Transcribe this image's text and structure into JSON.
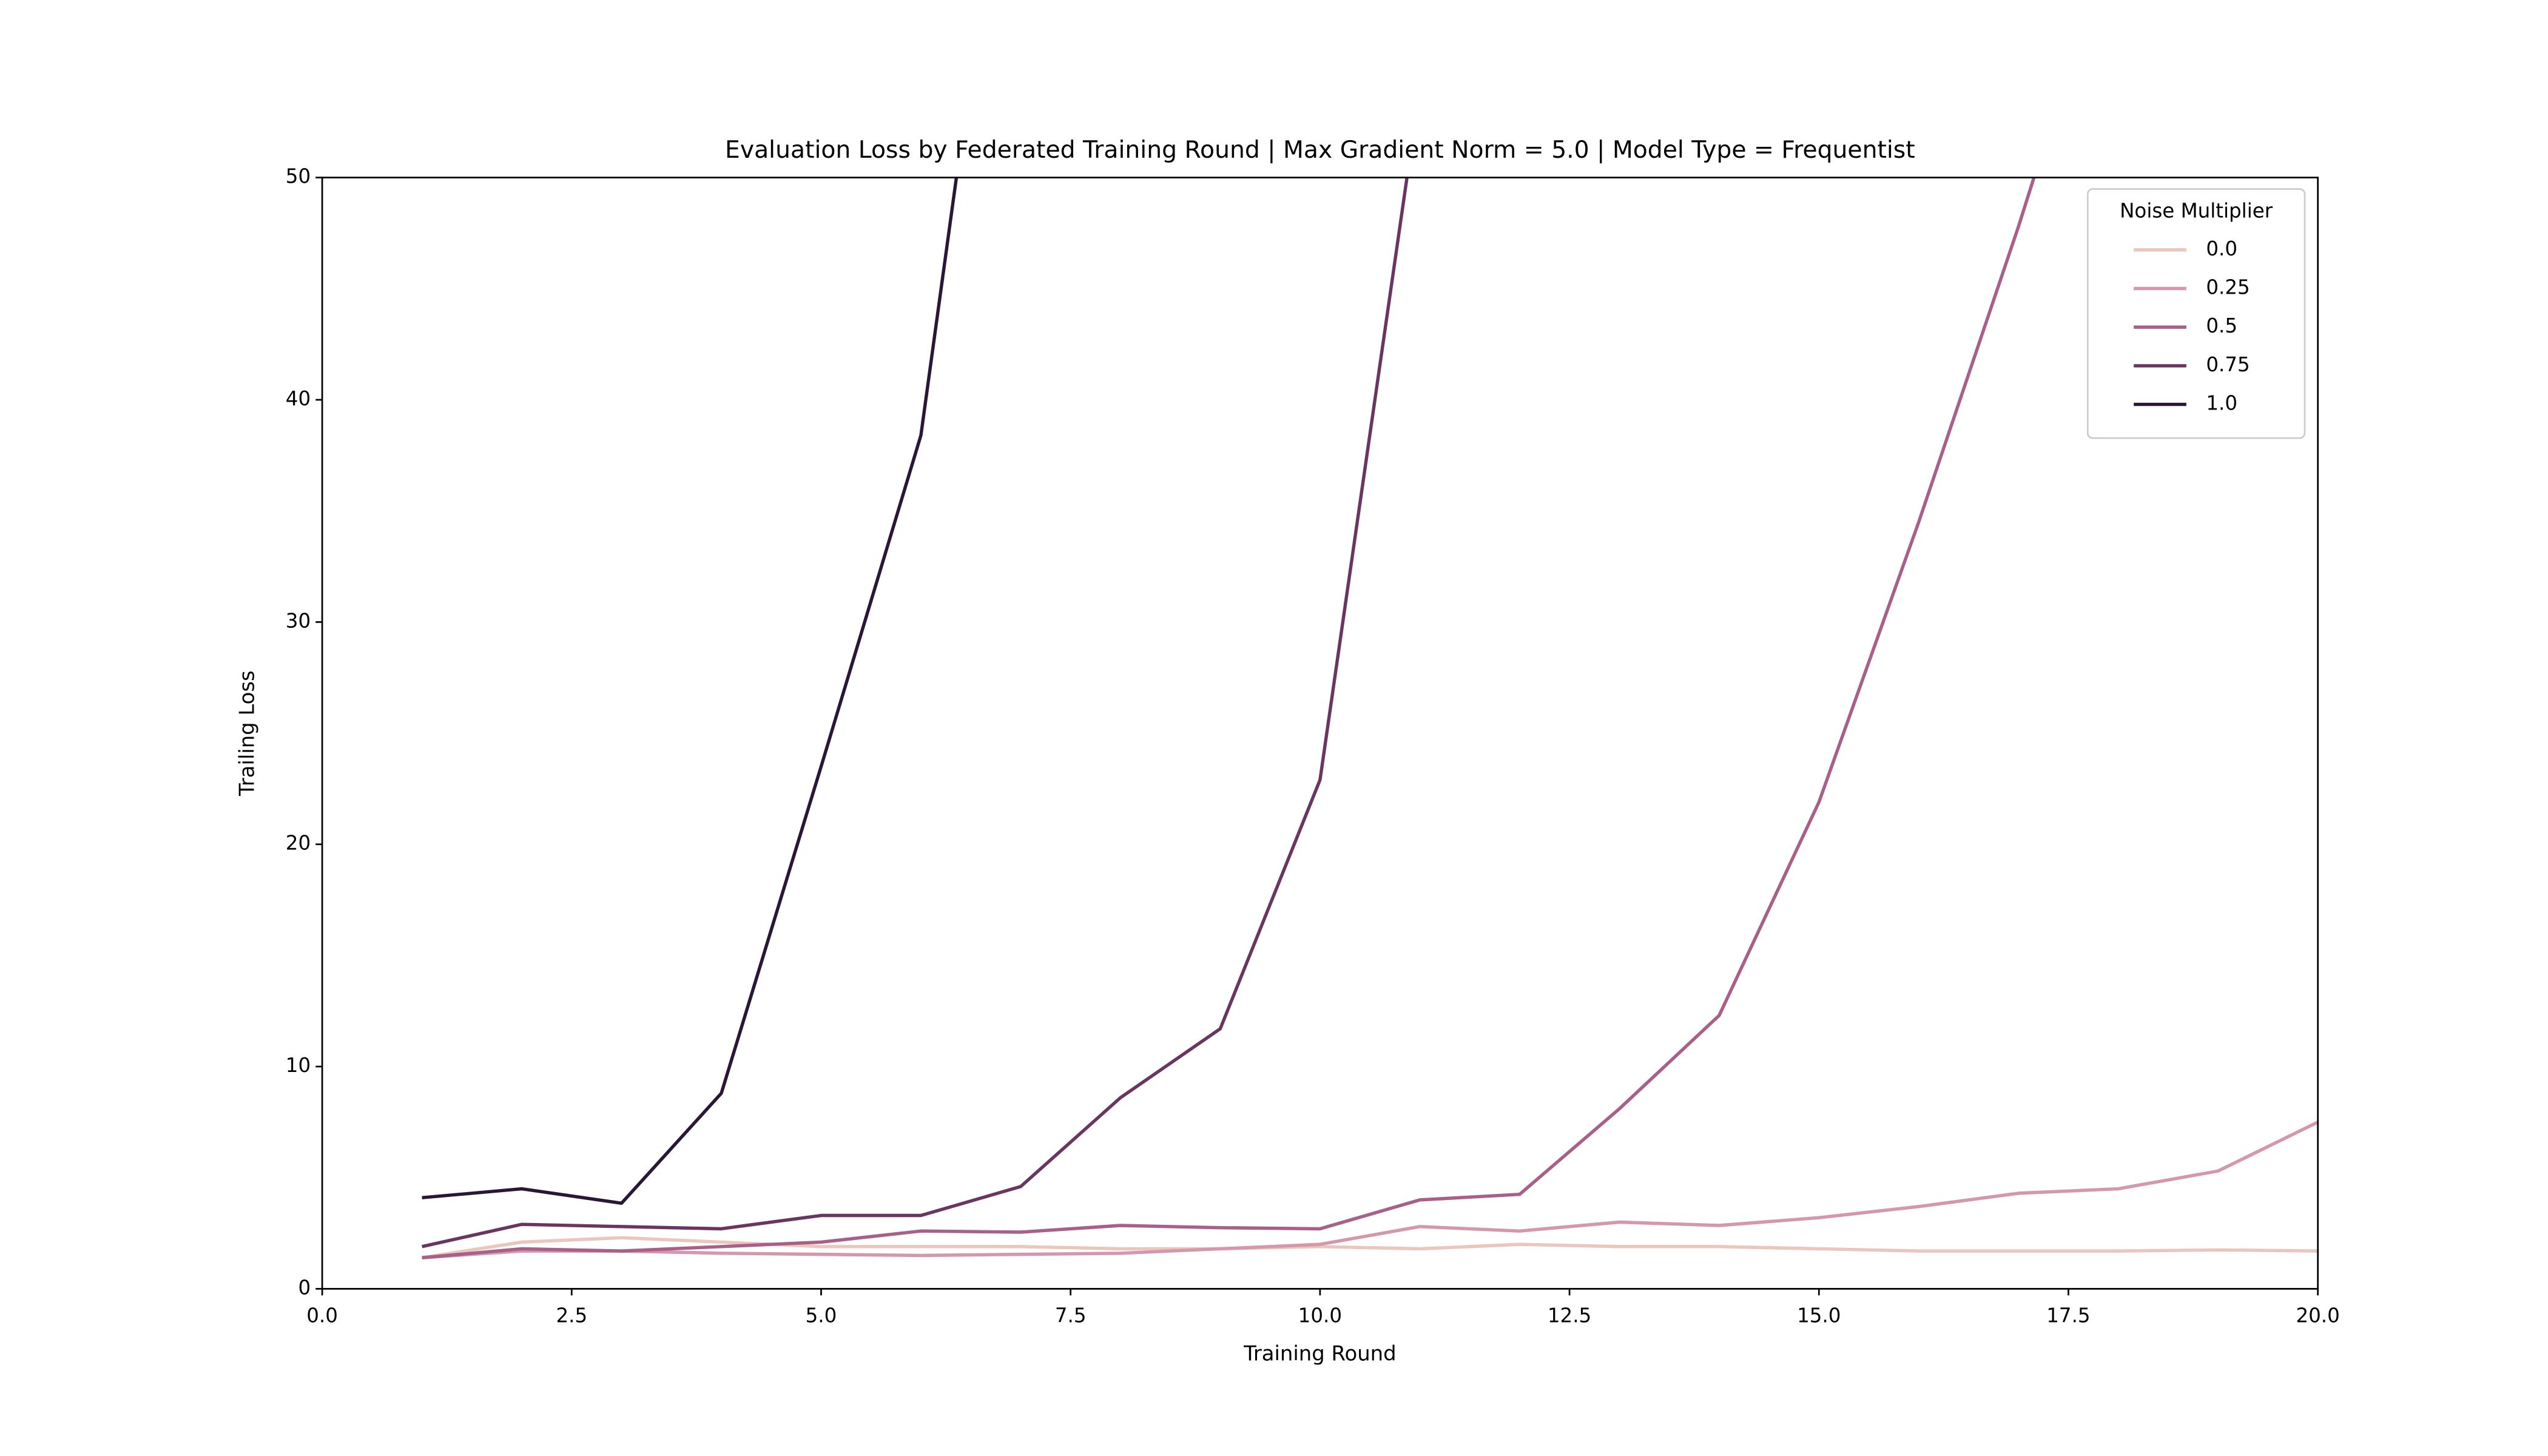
{
  "chart_data": {
    "type": "line",
    "title": "Evaluation Loss by Federated Training Round | Max Gradient Norm = 5.0 | Model Type = Frequentist",
    "x_label": "Training Round",
    "y_label": "Trailing Loss",
    "x": [
      1,
      2,
      3,
      4,
      5,
      6,
      7,
      8,
      9,
      10,
      11,
      12,
      13,
      14,
      15,
      16,
      17,
      18,
      19,
      20
    ],
    "series": [
      {
        "name": "0.0",
        "color": "#ebc6bc",
        "values": [
          1.4,
          2.1,
          2.3,
          2.1,
          1.9,
          1.9,
          1.9,
          1.8,
          1.8,
          1.9,
          1.8,
          2.0,
          1.9,
          1.9,
          1.8,
          1.7,
          1.7,
          1.7,
          1.75,
          1.7
        ]
      },
      {
        "name": "0.25",
        "color": "#d597aa",
        "values": [
          1.4,
          1.7,
          1.7,
          1.6,
          1.55,
          1.5,
          1.55,
          1.6,
          1.8,
          2.0,
          2.8,
          2.6,
          3.0,
          2.85,
          3.2,
          3.7,
          4.3,
          4.5,
          5.3,
          7.5
        ]
      },
      {
        "name": "0.5",
        "color": "#a85f88",
        "values": [
          1.4,
          1.8,
          1.7,
          1.9,
          2.1,
          2.6,
          2.55,
          2.85,
          2.75,
          2.7,
          4.0,
          4.25,
          8.1,
          12.3,
          21.9,
          34.5,
          47.8,
          62,
          null,
          null
        ]
      },
      {
        "name": "0.75",
        "color": "#6b3562",
        "values": [
          1.9,
          2.9,
          2.8,
          2.7,
          3.3,
          3.3,
          4.6,
          8.6,
          11.7,
          22.9,
          54,
          null,
          null,
          null,
          null,
          null,
          null,
          null,
          null,
          null
        ]
      },
      {
        "name": "1.0",
        "color": "#2a1738",
        "values": [
          4.1,
          4.5,
          3.85,
          8.8,
          23.5,
          38.4,
          71,
          null,
          null,
          null,
          null,
          null,
          null,
          null,
          null,
          null,
          null,
          null,
          null,
          null
        ]
      }
    ],
    "legend_title": "Noise Multiplier",
    "legend_position": "upper right",
    "xlim": [
      0,
      20
    ],
    "xticks": [
      {
        "value": 0,
        "label": "0.0"
      },
      2.5,
      {
        "value": 5,
        "label": "5.0"
      },
      7.5,
      {
        "value": 10,
        "label": "10.0"
      },
      12.5,
      {
        "value": 15,
        "label": "15.0"
      },
      17.5,
      {
        "value": 20,
        "label": "20.0"
      }
    ],
    "ylim": [
      0,
      50
    ],
    "yticks": [
      0,
      10,
      20,
      30,
      40,
      50
    ],
    "grid": false
  }
}
